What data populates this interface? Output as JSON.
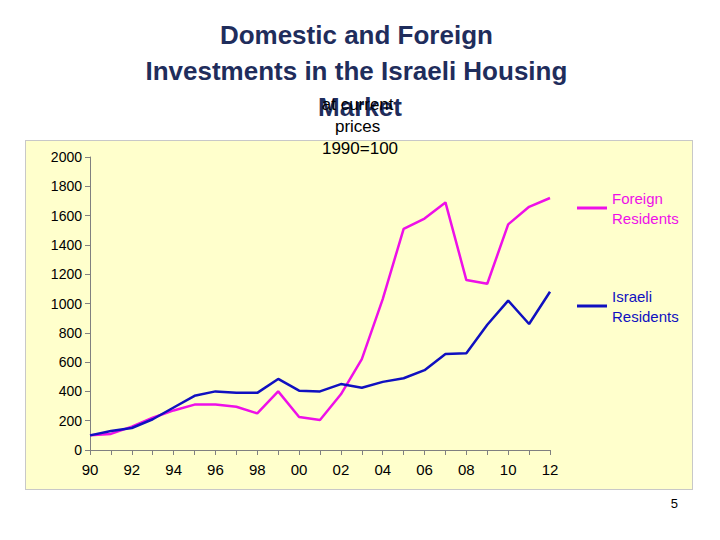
{
  "chart_data": {
    "type": "line",
    "title": "Domestic and Foreign Investments in the Israeli Housing Market",
    "subtitle": "at current prices 1990=100",
    "annotations": [
      "5"
    ],
    "categories": [
      "90",
      null,
      "92",
      null,
      "94",
      null,
      "96",
      null,
      "98",
      null,
      "00",
      null,
      "02",
      null,
      "04",
      null,
      "06",
      null,
      "08",
      null,
      "10",
      null,
      "12"
    ],
    "series": [
      {
        "name": "Foreign Residents",
        "color": "#ee10e8",
        "values": [
          100,
          110,
          160,
          220,
          270,
          310,
          310,
          295,
          250,
          400,
          225,
          205,
          380,
          620,
          1030,
          1510,
          1580,
          1690,
          1160,
          1135,
          1540,
          1660,
          1720
        ]
      },
      {
        "name": "Israeli Residents",
        "color": "#1010c0",
        "values": [
          100,
          130,
          150,
          210,
          290,
          370,
          400,
          390,
          390,
          485,
          405,
          400,
          450,
          425,
          465,
          490,
          545,
          655,
          660,
          855,
          1020,
          860,
          1080
        ]
      }
    ],
    "ylim": [
      0,
      2000
    ],
    "yticks": [
      0,
      200,
      400,
      600,
      800,
      1000,
      1200,
      1400,
      1600,
      1800,
      2000
    ],
    "grid": false,
    "legend": "right",
    "marker": "none"
  }
}
